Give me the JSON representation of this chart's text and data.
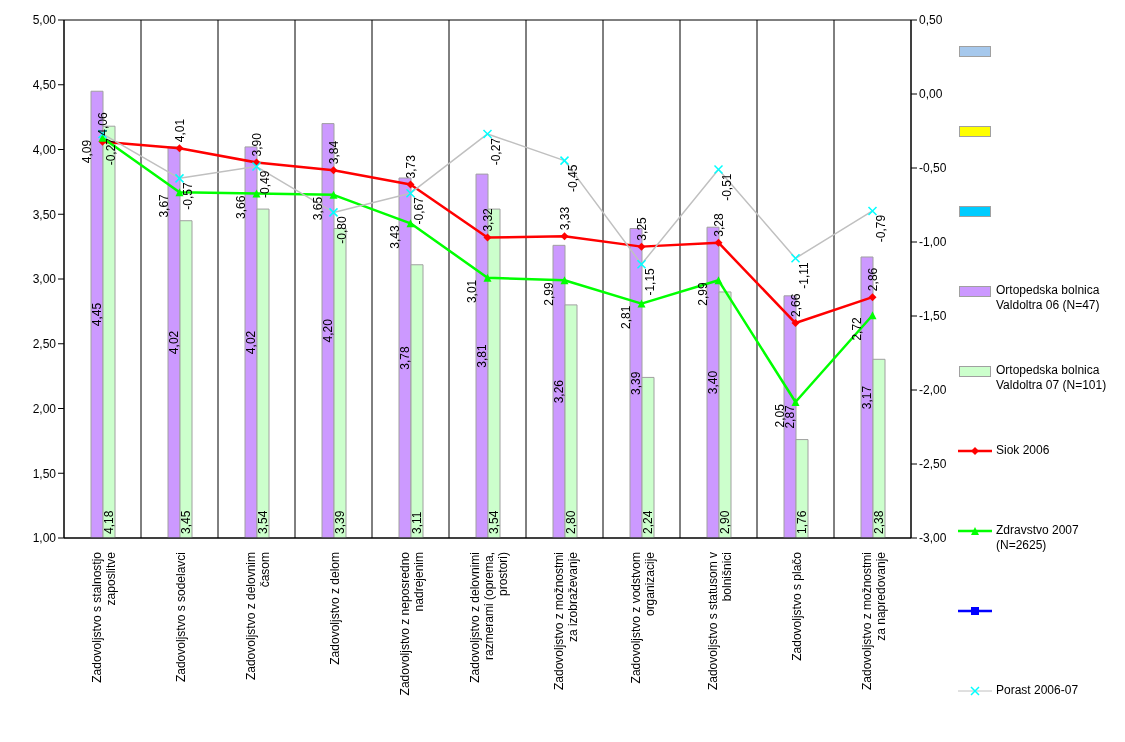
{
  "chart_data": {
    "type": "bar",
    "categories": [
      "Zadovoljstvo s stalnostjo zaposlitve",
      "Zadovoljstvo s sodelavci",
      "Zadovoljstvo z delovnim časom",
      "Zadovoljstvo z delom",
      "Zadovoljstvo z neposredno nadrejenim",
      "Zadovoljstvo z delovnimi razmerami (oprema, prostori)",
      "Zadovoljstvo z možnostmi za izobraževanje",
      "Zadovoljstvo z vodstvom organizacije",
      "Zadovoljstvo s statusom v bolnišnici",
      "Zadovoljstvo s plačo",
      "Zadovoljstvo z možnostmi za napredovanje"
    ],
    "series": [
      {
        "color": "#a6c8ec",
        "values": [
          null,
          null,
          null,
          null,
          null,
          null,
          null,
          null,
          null,
          null,
          null
        ]
      },
      {
        "color": "#ffff00",
        "values": [
          null,
          null,
          null,
          null,
          null,
          null,
          null,
          null,
          null,
          null,
          null
        ]
      },
      {
        "color": "#00ccff",
        "values": [
          null,
          null,
          null,
          null,
          null,
          null,
          null,
          null,
          null,
          null,
          null
        ]
      },
      {
        "name": "Ortopedska bolnica Valdoltra 06 (N=47)",
        "color": "#cc99ff",
        "values": [
          4.45,
          4.02,
          4.02,
          4.2,
          3.78,
          3.81,
          3.26,
          3.39,
          3.4,
          2.87,
          3.17
        ],
        "value_labels": [
          "4,45",
          "4,02",
          "4,02",
          "4,20",
          "3,78",
          "3,81",
          "3,26",
          "3,39",
          "3,40",
          "2,87",
          "3,17"
        ]
      },
      {
        "name": "Ortopedska bolnica Valdoltra 07 (N=101)",
        "color": "#ccffcc",
        "values": [
          4.18,
          3.45,
          3.54,
          3.39,
          3.11,
          3.54,
          2.8,
          2.24,
          2.9,
          1.76,
          2.38
        ],
        "value_labels": [
          "4,18",
          "3,45",
          "3,54",
          "3,39",
          "3,11",
          "3,54",
          "2,80",
          "2,24",
          "2,90",
          "1,76",
          "2,38"
        ]
      },
      {
        "type": "line",
        "name": "Siok 2006",
        "color": "#ff0000",
        "marker": "diamond",
        "values": [
          4.06,
          4.01,
          3.9,
          3.84,
          3.73,
          3.32,
          3.33,
          3.25,
          3.28,
          2.66,
          2.86
        ],
        "value_labels": [
          "4,06",
          "4,01",
          "3,90",
          "3,84",
          "3,73",
          "3,32",
          "3,33",
          "3,25",
          "3,28",
          "2,66",
          "2,86"
        ]
      },
      {
        "type": "line",
        "name": "Zdravstvo 2007 (N=2625)",
        "color": "#00ff00",
        "marker": "triangle",
        "values": [
          4.09,
          3.67,
          3.66,
          3.65,
          3.43,
          3.01,
          2.99,
          2.81,
          2.99,
          2.05,
          2.72
        ],
        "value_labels": [
          "4,09",
          "3,67",
          "3,66",
          "3,65",
          "3,43",
          "3,01",
          "2,99",
          "2,81",
          "2,99",
          "2,05",
          "2,72"
        ]
      },
      {
        "type": "line",
        "color": "#0000ff",
        "marker": "square",
        "values": [
          null,
          null,
          null,
          null,
          null,
          null,
          null,
          null,
          null,
          null,
          null
        ]
      },
      {
        "type": "line",
        "name": "Porast 2006-07",
        "color": "#c0c0c0",
        "colors": [
          "#00ffff",
          "#00ffff",
          "#00ffff",
          "#00ffff",
          "#00ffff",
          "#00ffff",
          "#00ffff",
          "#00ffff",
          "#00ffff",
          "#00ffff",
          "#00ffff"
        ],
        "marker": "cross",
        "axis": "y2",
        "values": [
          -0.27,
          -0.57,
          -0.49,
          -0.8,
          -0.67,
          -0.27,
          -0.45,
          -1.15,
          -0.51,
          -1.11,
          -0.79
        ],
        "value_labels": [
          "-0,27",
          "-0,57",
          "-0,49",
          "-0,80",
          "-0,67",
          "-0,27",
          "-0,45",
          "-1,15",
          "-0,51",
          "-1,11",
          "-0,79"
        ]
      }
    ],
    "ylim": [
      1,
      5
    ],
    "yticks": [
      {
        "value": 1,
        "label": "1,00"
      },
      {
        "value": 1.5,
        "label": "1,50"
      },
      {
        "value": 2,
        "label": "2,00"
      },
      {
        "value": 2.5,
        "label": "2,50"
      },
      {
        "value": 3,
        "label": "3,00"
      },
      {
        "value": 3.5,
        "label": "3,50"
      },
      {
        "value": 4,
        "label": "4,00"
      },
      {
        "value": 4.5,
        "label": "4,50"
      },
      {
        "value": 5,
        "label": "5,00"
      }
    ],
    "y2lim": [
      -3,
      0.5
    ],
    "y2ticks": [
      {
        "value": -3,
        "label": "-3,00"
      },
      {
        "value": -2.5,
        "label": "-2,50"
      },
      {
        "value": -2,
        "label": "-2,00"
      },
      {
        "value": -1.5,
        "label": "-1,50"
      },
      {
        "value": -1,
        "label": "-1,00"
      },
      {
        "value": -0.5,
        "label": "-0,50"
      },
      {
        "value": 0,
        "label": "0,00"
      },
      {
        "value": 0.5,
        "label": "0,50"
      }
    ],
    "grid": true,
    "legend": "right"
  }
}
